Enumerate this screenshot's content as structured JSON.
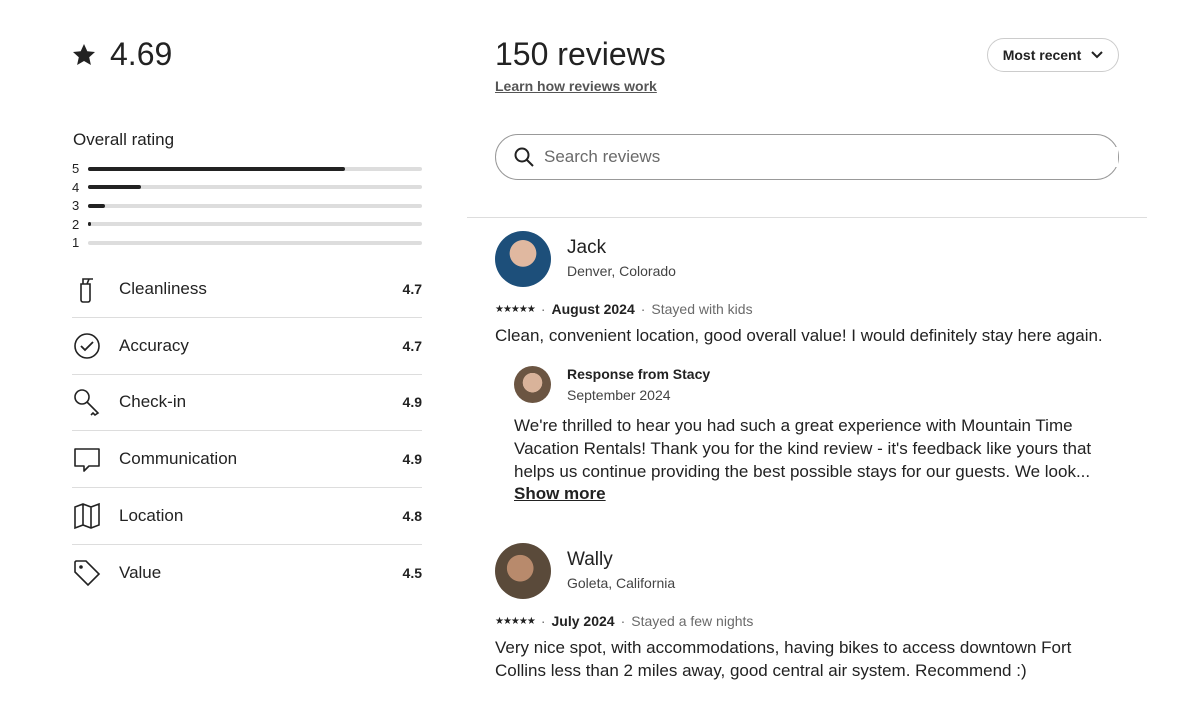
{
  "summary": {
    "rating": "4.69",
    "star_icon": "star-icon",
    "overall_label": "Overall rating",
    "distribution": [
      {
        "label": "5",
        "fraction": 0.77
      },
      {
        "label": "4",
        "fraction": 0.16
      },
      {
        "label": "3",
        "fraction": 0.05
      },
      {
        "label": "2",
        "fraction": 0.01
      },
      {
        "label": "1",
        "fraction": 0
      }
    ],
    "categories": [
      {
        "label": "Cleanliness",
        "value": "4.7",
        "icon": "spray-bottle-icon"
      },
      {
        "label": "Accuracy",
        "value": "4.7",
        "icon": "check-circle-icon"
      },
      {
        "label": "Check-in",
        "value": "4.9",
        "icon": "key-icon"
      },
      {
        "label": "Communication",
        "value": "4.9",
        "icon": "chat-bubble-icon"
      },
      {
        "label": "Location",
        "value": "4.8",
        "icon": "map-icon"
      },
      {
        "label": "Value",
        "value": "4.5",
        "icon": "tag-icon"
      }
    ]
  },
  "header": {
    "title": "150 reviews",
    "learn_link": "Learn how reviews work",
    "sort_label": "Most recent"
  },
  "search": {
    "placeholder": "Search reviews",
    "value": ""
  },
  "reviews": [
    {
      "name": "Jack",
      "location": "Denver, Colorado",
      "stars": "★★★★★",
      "date": "August 2024",
      "stay": "Stayed with kids",
      "text": "Clean, convenient location, good overall value! I would definitely stay here again.",
      "response": {
        "title": "Response from Stacy",
        "date": "September 2024",
        "text": "We're thrilled to hear you had such a great experience with Mountain Time Vacation Rentals! Thank you for the kind review - it's feedback like yours that helps us continue providing the best possible stays for our guests. We look...",
        "show_more": "Show more"
      }
    },
    {
      "name": "Wally",
      "location": "Goleta, California",
      "stars": "★★★★★",
      "date": "July 2024",
      "stay": "Stayed a few nights",
      "text": "Very nice spot, with accommodations, having bikes to access downtown Fort Collins less than 2 miles away, good central air system. Recommend :)"
    }
  ]
}
